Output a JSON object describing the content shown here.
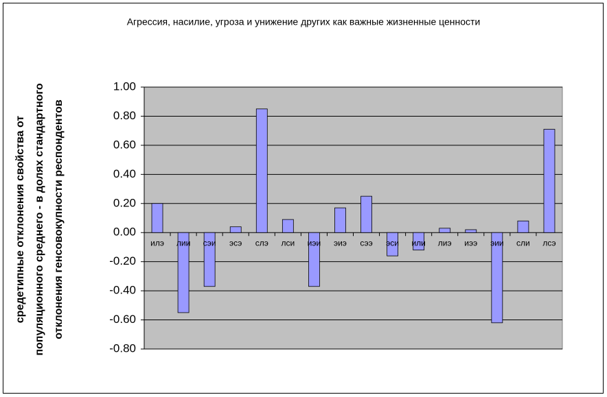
{
  "chart_data": {
    "type": "bar",
    "title": "Агрессия, насилие, угроза и унижение других как важные жизненные ценности",
    "ylabel": [
      "средетипные отклонения свойства от",
      "популяционного среднего - в долях стандартного",
      "отклонения генсовокупности респондентов"
    ],
    "categories": [
      "илэ",
      "лии",
      "сэи",
      "эсэ",
      "слэ",
      "лси",
      "иэи",
      "эиэ",
      "сээ",
      "эси",
      "или",
      "лиэ",
      "иээ",
      "эии",
      "сли",
      "лсэ"
    ],
    "values": [
      0.2,
      -0.55,
      -0.37,
      0.04,
      0.85,
      0.09,
      -0.37,
      0.17,
      0.25,
      -0.16,
      -0.12,
      0.03,
      0.02,
      -0.62,
      0.08,
      0.71
    ],
    "color": "#9999ff",
    "ylim": [
      -0.8,
      1.0
    ],
    "yticks": [
      {
        "value": 1.0,
        "label": "1.00"
      },
      {
        "value": 0.8,
        "label": "0.80"
      },
      {
        "value": 0.6,
        "label": "0.60"
      },
      {
        "value": 0.4,
        "label": "0.40"
      },
      {
        "value": 0.2,
        "label": "0.20"
      },
      {
        "value": 0,
        "label": "0.00"
      },
      {
        "value": -0.2,
        "label": "-0.20"
      },
      {
        "value": -0.4,
        "label": "-0.40"
      },
      {
        "value": -0.6,
        "label": "-0.60"
      },
      {
        "value": -0.8,
        "label": "-0.80"
      }
    ],
    "grid": true
  }
}
